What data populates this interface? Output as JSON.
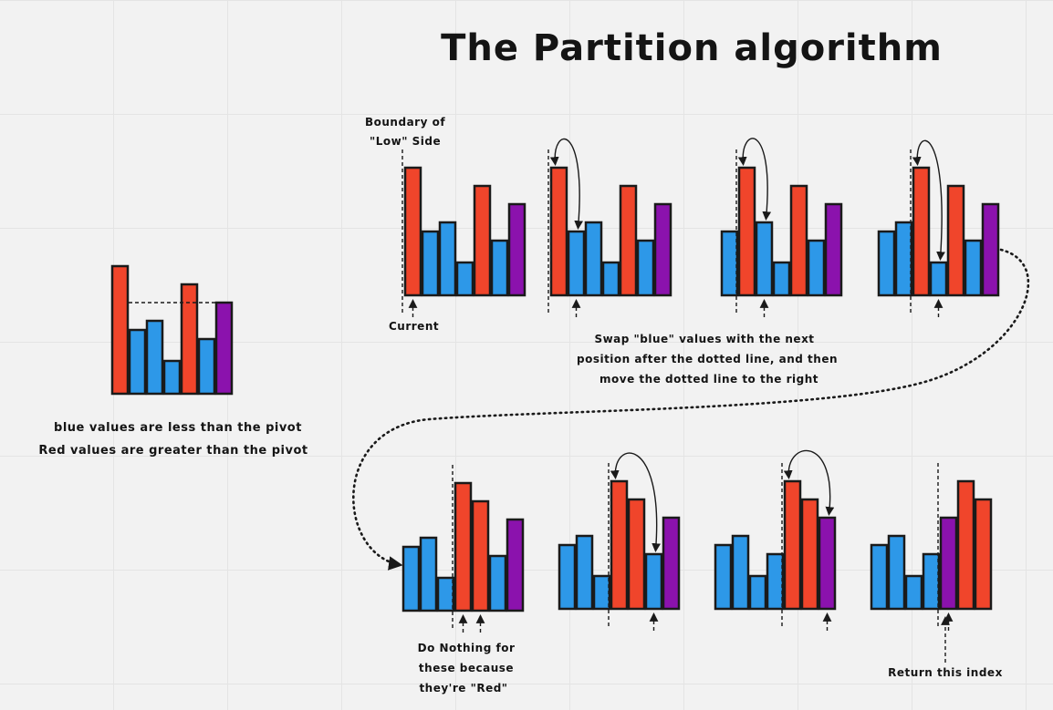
{
  "title": "The Partition algorithm",
  "colors": {
    "red": "#f0452b",
    "blue": "#2d98e8",
    "purple": "#8b12ad"
  },
  "legend": {
    "line1": "blue values are less than the pivot",
    "line2": "Red values are greater than the pivot"
  },
  "annotations": {
    "boundary_line1": "Boundary of",
    "boundary_line2": "\"Low\" Side",
    "current": "Current",
    "swap_line1": "Swap \"blue\" values with the next",
    "swap_line2": "position after the dotted line, and then",
    "swap_line3": "move the dotted line to the right",
    "nothing_line1": "Do Nothing for",
    "nothing_line2": "these because",
    "nothing_line3": "they're \"Red\"",
    "return_index": "Return this index"
  },
  "intro_array": {
    "values": [
      7,
      3.5,
      4,
      1.8,
      6,
      3,
      5
    ],
    "colors": [
      "red",
      "blue",
      "blue",
      "blue",
      "red",
      "blue",
      "purple"
    ]
  },
  "steps": [
    {
      "values": [
        7,
        3.5,
        4,
        1.8,
        6,
        3,
        5
      ],
      "colors": [
        "red",
        "blue",
        "blue",
        "blue",
        "red",
        "blue",
        "purple"
      ],
      "boundary": 0,
      "current": [
        0
      ],
      "swap": null
    },
    {
      "values": [
        7,
        3.5,
        4,
        1.8,
        6,
        3,
        5
      ],
      "colors": [
        "red",
        "blue",
        "blue",
        "blue",
        "red",
        "blue",
        "purple"
      ],
      "boundary": 0,
      "current": [
        1
      ],
      "swap": [
        0,
        1
      ]
    },
    {
      "values": [
        3.5,
        7,
        4,
        1.8,
        6,
        3,
        5
      ],
      "colors": [
        "blue",
        "red",
        "blue",
        "blue",
        "red",
        "blue",
        "purple"
      ],
      "boundary": 1,
      "current": [
        2
      ],
      "swap": [
        1,
        2
      ]
    },
    {
      "values": [
        3.5,
        4,
        7,
        1.8,
        6,
        3,
        5
      ],
      "colors": [
        "blue",
        "blue",
        "red",
        "blue",
        "red",
        "blue",
        "purple"
      ],
      "boundary": 2,
      "current": [
        3
      ],
      "swap": [
        2,
        3
      ]
    },
    {
      "values": [
        3.5,
        4,
        1.8,
        7,
        6,
        3,
        5
      ],
      "colors": [
        "blue",
        "blue",
        "blue",
        "red",
        "red",
        "blue",
        "purple"
      ],
      "boundary": 3,
      "current": [
        3,
        4
      ],
      "swap": null
    },
    {
      "values": [
        3.5,
        4,
        1.8,
        7,
        6,
        3,
        5
      ],
      "colors": [
        "blue",
        "blue",
        "blue",
        "red",
        "red",
        "blue",
        "purple"
      ],
      "boundary": 3,
      "current": [
        5
      ],
      "swap": [
        3,
        5
      ]
    },
    {
      "values": [
        3.5,
        4,
        1.8,
        3,
        7,
        6,
        5
      ],
      "colors": [
        "blue",
        "blue",
        "blue",
        "blue",
        "red",
        "red",
        "purple"
      ],
      "boundary": 4,
      "current": [
        6
      ],
      "swap": [
        4,
        6
      ]
    },
    {
      "values": [
        3.5,
        4,
        1.8,
        3,
        5,
        7,
        6
      ],
      "colors": [
        "blue",
        "blue",
        "blue",
        "blue",
        "purple",
        "red",
        "red"
      ],
      "boundary": 4,
      "current": [
        4
      ],
      "swap": null
    }
  ]
}
